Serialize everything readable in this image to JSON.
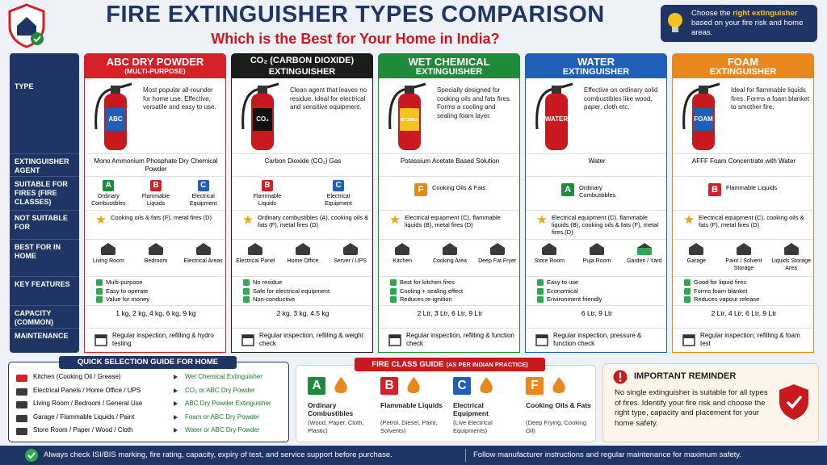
{
  "header": {
    "title": "FIRE EXTINGUISHER TYPES COMPARISON",
    "subtitle": "Which is the Best for Your Home in India?",
    "tip_before": "Choose the",
    "tip_highlight": "right extinguisher",
    "tip_after": "based on your fire risk and home areas."
  },
  "table": {
    "row_labels": [
      "TYPE",
      "EXTINGUISHER AGENT",
      "SUITABLE FOR FIRES (FIRE CLASSES)",
      "NOT SUITABLE FOR",
      "BEST FOR IN HOME",
      "KEY FEATURES",
      "CAPACITY (COMMON)",
      "MAINTENANCE"
    ],
    "columns": [
      {
        "name": "ABC DRY POWDER",
        "sub": "(MULTI-PURPOSE)",
        "color": "#d42026",
        "can_label": "ABC",
        "description": "Most popular all-rounder for home use. Effective, versatile and easy to use.",
        "agent": "Mono Ammonium Phosphate Dry Chemical Powder",
        "suitable": [
          {
            "letter": "A",
            "label": "Ordinary Combustibles"
          },
          {
            "letter": "B",
            "label": "Flammable Liquids"
          },
          {
            "letter": "C",
            "label": "Electrical Equipment"
          }
        ],
        "not_suitable": "Cooking oils & fats (F), metal fires (D)",
        "best_for": [
          "Living Room",
          "Bedroom",
          "Electrical Areas"
        ],
        "features": [
          "Multi-purpose",
          "Easy to operate",
          "Value for money"
        ],
        "capacity": "1 kg, 2 kg, 4 kg, 6 kg, 9 kg",
        "maintenance": "Regular inspection, refilling & hydro testing"
      },
      {
        "name": "CO₂ (CARBON DIOXIDE)",
        "sub": "EXTINGUISHER",
        "color": "#1b1b1b",
        "can_label": "CO₂",
        "description": "Clean agent that leaves no residue. Ideal for electrical and sensitive equipment.",
        "agent": "Carbon Dioxide (CO₂) Gas",
        "suitable": [
          {
            "letter": "B",
            "label": "Flammable Liquids"
          },
          {
            "letter": "C",
            "label": "Electrical Equipment"
          }
        ],
        "not_suitable": "Ordinary combustibles (A), cooking oils & fats (F), metal fires (D)",
        "best_for": [
          "Electrical Panel",
          "Home Office",
          "Server / UPS"
        ],
        "features": [
          "No residue",
          "Safe for electrical equipment",
          "Non-conductive"
        ],
        "capacity": "2 kg, 3 kg, 4.5 kg",
        "maintenance": "Regular inspection, refilling & weight check"
      },
      {
        "name": "WET CHEMICAL",
        "sub": "EXTINGUISHER",
        "color": "#1e8a3a",
        "can_label": "WET CHEMICAL",
        "description": "Specially designed for cooking oils and fats fires. Forms a cooling and sealing foam layer.",
        "agent": "Potassium Acetate Based Solution",
        "suitable": [
          {
            "letter": "F",
            "label": "Cooking Oils & Fats"
          }
        ],
        "not_suitable": "Electrical equipment (C), flammable liquids (B), metal fires (D)",
        "best_for": [
          "Kitchen",
          "Cooking Area",
          "Deep Fat Fryer"
        ],
        "features": [
          "Best for kitchen fires",
          "Cooling + sealing effect",
          "Reduces re-ignition"
        ],
        "capacity": "2 Ltr, 3 Ltr, 6 Ltr, 9 Ltr",
        "maintenance": "Regular inspection, refilling & function check"
      },
      {
        "name": "WATER",
        "sub": "EXTINGUISHER",
        "color": "#1f5fb8",
        "can_label": "WATER",
        "description": "Effective on ordinary solid combustibles like wood, paper, cloth etc.",
        "agent": "Water",
        "suitable": [
          {
            "letter": "A",
            "label": "Ordinary Combustibles"
          }
        ],
        "not_suitable": "Electrical equipment (C), flammable liquids (B), cooking oils & fats (F), metal fires (D)",
        "best_for": [
          "Store Room",
          "Puja Room",
          "Garden / Yard"
        ],
        "features": [
          "Easy to use",
          "Economical",
          "Environment friendly"
        ],
        "capacity": "6 Ltr, 9 Ltr",
        "maintenance": "Regular inspection, pressure & function check"
      },
      {
        "name": "FOAM",
        "sub": "EXTINGUISHER",
        "color": "#e8871e",
        "can_label": "FOAM",
        "description": "Ideal for flammable liquids fires. Forms a foam blanket to smother fire.",
        "agent": "AFFF Foam Concentrate with Water",
        "suitable": [
          {
            "letter": "B",
            "label": "Flammable Liquids"
          }
        ],
        "not_suitable": "Electrical equipment (C), cooking oils & fats (F), metal fires (D)",
        "best_for": [
          "Garage",
          "Paint / Solvent Storage",
          "Liquids Storage Area"
        ],
        "features": [
          "Good for liquid fires",
          "Forms foam blanket",
          "Reduces vapour release"
        ],
        "capacity": "2 Ltr, 4 Ltr, 6 Ltr, 9 Ltr",
        "maintenance": "Regular inspection, refilling & foam test"
      }
    ]
  },
  "class_colors": {
    "A": "#1e8a3a",
    "B": "#d42026",
    "C": "#1f5fb8",
    "F": "#e8871e"
  },
  "quick_guide": {
    "title": "QUICK SELECTION GUIDE FOR HOME",
    "rows": [
      [
        "Kitchen (Cooking Oil / Grease)",
        "Wet Chemical Extinguisher"
      ],
      [
        "Electrical Panels / Home Office / UPS",
        "CO₂ or ABC Dry Powder"
      ],
      [
        "Living Room / Bedroom / General Use",
        "ABC Dry Powder Extinguisher"
      ],
      [
        "Garage / Flammable Liquids / Paint",
        "Foam or ABC Dry Powder"
      ],
      [
        "Store Room / Paper / Wood / Cloth",
        "Water or ABC Dry Powder"
      ]
    ]
  },
  "fire_class_guide": {
    "title": "FIRE CLASS GUIDE",
    "title_note": "(AS PER INDIAN PRACTICE)",
    "classes": [
      {
        "letter": "A",
        "name": "Ordinary Combustibles",
        "examples": "(Wood, Paper, Cloth, Plastic)"
      },
      {
        "letter": "B",
        "name": "Flammable Liquids",
        "examples": "(Petrol, Diesel, Paint, Solvents)"
      },
      {
        "letter": "C",
        "name": "Electrical Equipment",
        "examples": "(Live Electrical Equipments)"
      },
      {
        "letter": "F",
        "name": "Cooking Oils & Fats",
        "examples": "(Deep Frying, Cooking Oil)"
      }
    ]
  },
  "reminder": {
    "title": "IMPORTANT REMINDER",
    "text": "No single extinguisher is suitable for all types of fires. Identify your fire risk and choose the right type, capacity and placement for your home safety."
  },
  "footer": {
    "left": "Always check ISI/BIS marking, fire rating, capacity, expiry of test, and service support before purchase.",
    "right": "Follow manufacturer instructions and regular maintenance for maximum safety."
  }
}
